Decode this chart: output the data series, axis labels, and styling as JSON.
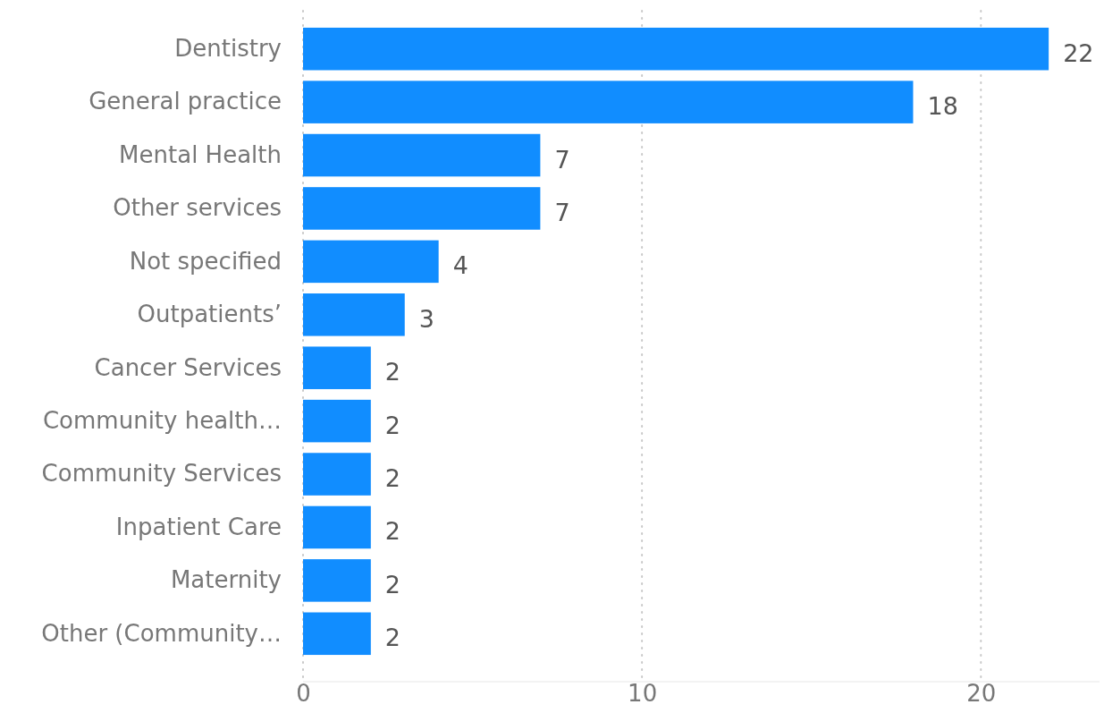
{
  "chart_data": {
    "type": "bar",
    "orientation": "horizontal",
    "categories": [
      "Dentistry",
      "General practice",
      "Mental Health",
      "Other services",
      "Not specified",
      "Outpatients’",
      "Cancer Services",
      "Community health…",
      "Community Services",
      "Inpatient Care",
      "Maternity",
      "Other (Community…"
    ],
    "values": [
      22,
      18,
      7,
      7,
      4,
      3,
      2,
      2,
      2,
      2,
      2,
      2
    ],
    "color": "#118dff",
    "xlim": [
      0,
      23.5
    ],
    "xticks": [
      0,
      10,
      20
    ],
    "grid": "x",
    "data_labels": true
  }
}
